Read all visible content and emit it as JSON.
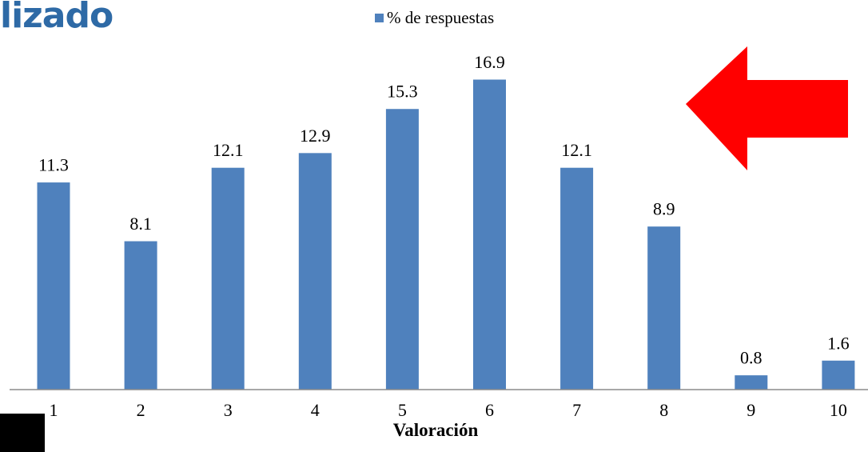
{
  "page": {
    "title_fragment": "lizado",
    "arrow_color": "#ff0000"
  },
  "chart_data": {
    "type": "bar",
    "categories": [
      "1",
      "2",
      "3",
      "4",
      "5",
      "6",
      "7",
      "8",
      "9",
      "10"
    ],
    "series": [
      {
        "name": "% de respuestas",
        "values": [
          11.3,
          8.1,
          12.1,
          12.9,
          15.3,
          16.9,
          12.1,
          8.9,
          0.8,
          1.6
        ],
        "color": "#4f81bd"
      }
    ],
    "data_labels": [
      "11.3",
      "8.1",
      "12.1",
      "12.9",
      "15.3",
      "16.9",
      "12.1",
      "8.9",
      "0.8",
      "1.6"
    ],
    "xlabel": "Valoración",
    "ylabel": "",
    "ylim": [
      0,
      17.6
    ],
    "legend": "top-center",
    "grid": false
  }
}
